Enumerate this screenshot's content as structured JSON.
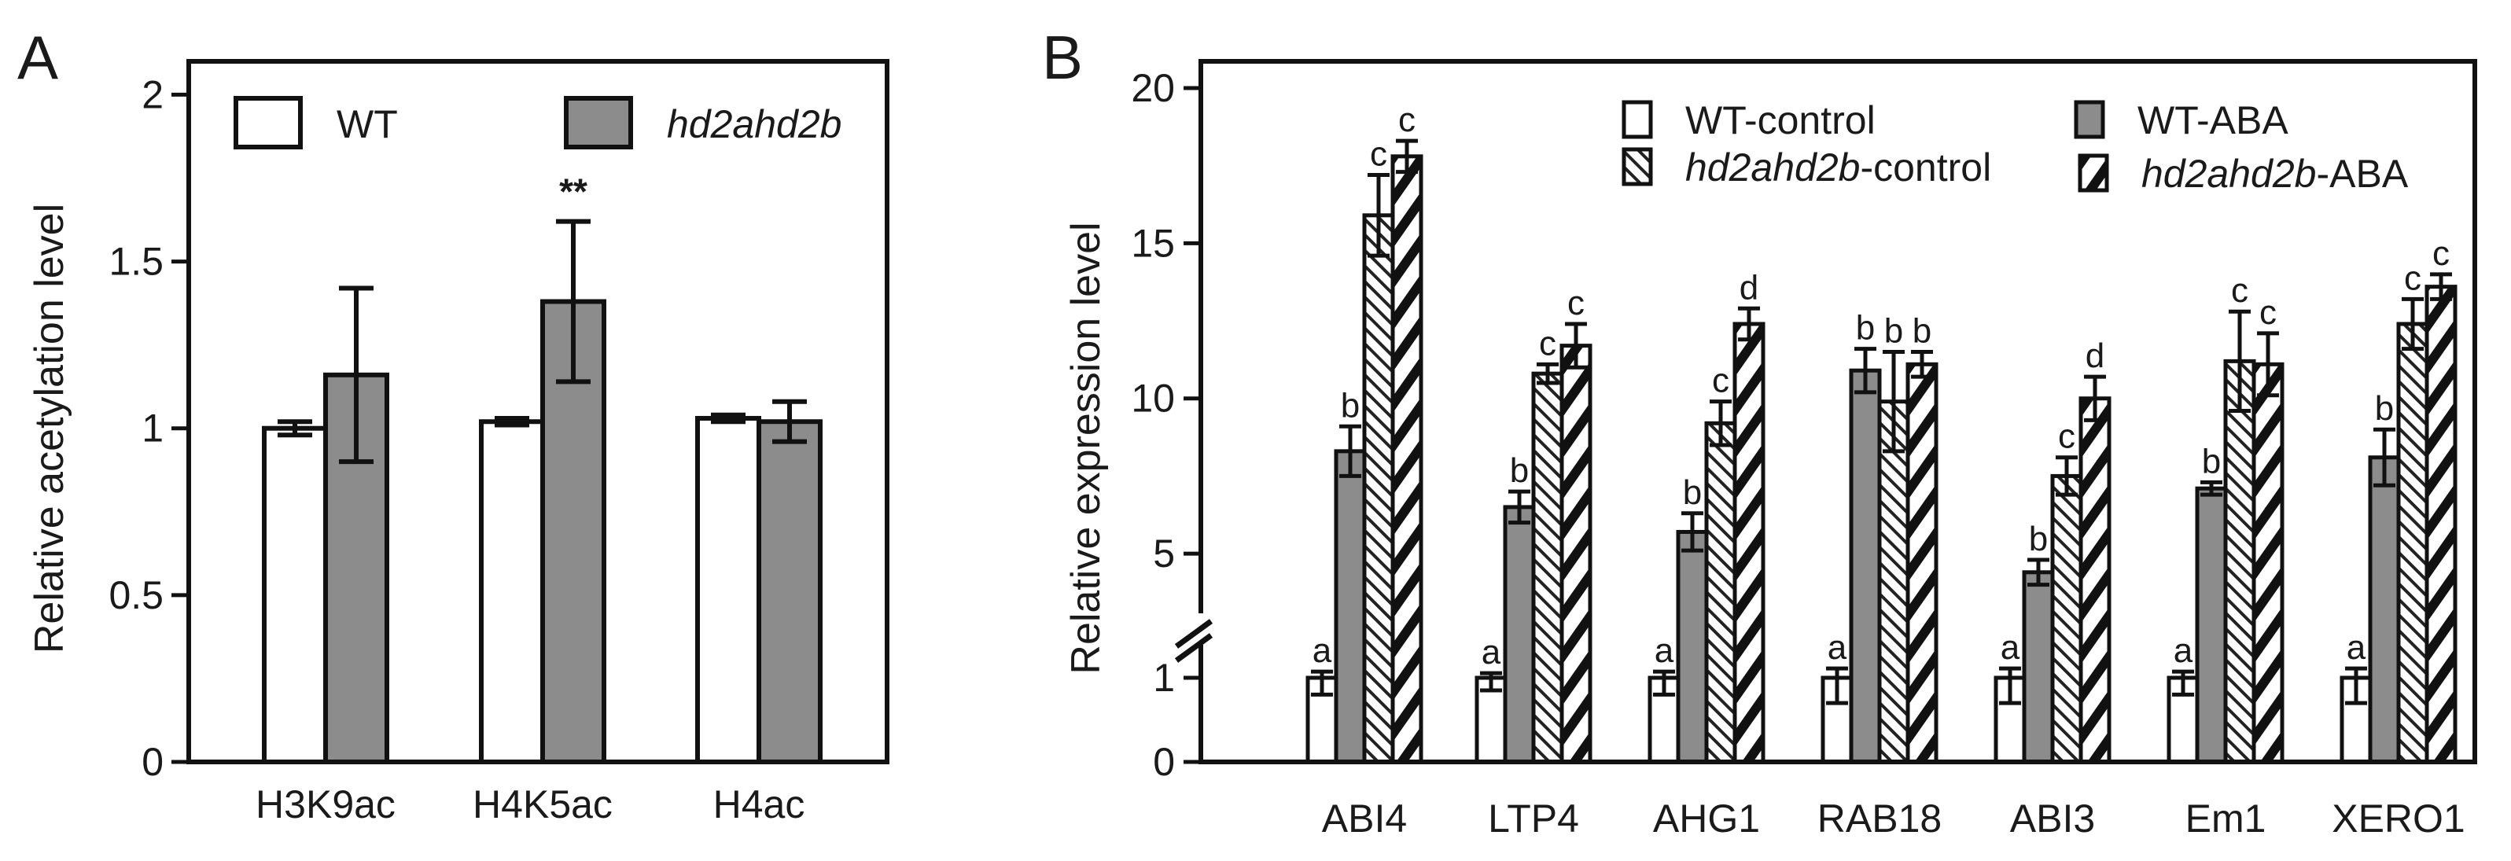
{
  "colors": {
    "white": "#ffffff",
    "gray": "#8c8c8c",
    "black": "#111111"
  },
  "chart_data": [
    {
      "panel": "A",
      "type": "bar",
      "ylabel": "Relative acetylation level",
      "ylim": [
        0,
        2.1
      ],
      "yticks": [
        0,
        0.5,
        1,
        1.5,
        2
      ],
      "ytick_labels": [
        "0",
        "0.5",
        "1",
        "1.5",
        "2"
      ],
      "categories": [
        "H3K9ac",
        "H4K5ac",
        "H4ac"
      ],
      "legend": {
        "placement": "top",
        "entries": [
          {
            "label": "WT",
            "italic": false,
            "fill": "white"
          },
          {
            "label": "hd2ahd2b",
            "italic": true,
            "fill": "gray"
          }
        ]
      },
      "series": [
        {
          "name": "WT",
          "fill": "white",
          "values": [
            1.0,
            1.02,
            1.03
          ],
          "errors": [
            0.02,
            0.01,
            0.01
          ]
        },
        {
          "name": "hd2ahd2b",
          "fill": "gray",
          "values": [
            1.16,
            1.38,
            1.02
          ],
          "errors": [
            0.26,
            0.24,
            0.06
          ]
        }
      ],
      "annotations": [
        {
          "category": "H4K5ac",
          "series": "hd2ahd2b",
          "text": "**"
        }
      ]
    },
    {
      "panel": "B",
      "type": "bar",
      "ylabel": "Relative expression level",
      "ylim": [
        0,
        20
      ],
      "axis_break": true,
      "yticks": [
        0,
        1,
        5,
        10,
        15,
        20
      ],
      "ytick_labels": [
        "0",
        "1",
        "5",
        "10",
        "15",
        "20"
      ],
      "categories": [
        "ABI4",
        "LTP4",
        "AHG1",
        "RAB18",
        "ABI3",
        "Em1",
        "XERO1"
      ],
      "legend": {
        "placement": "top-right",
        "entries": [
          {
            "label": "WT-control",
            "prefix": "",
            "suffix": "",
            "fill": "white"
          },
          {
            "label": "WT-ABA",
            "prefix": "",
            "suffix": "",
            "fill": "gray"
          },
          {
            "label": "hd2ahd2b-control",
            "prefix": "hd2ahd2b",
            "suffix": "-control",
            "fill": "dots"
          },
          {
            "label": "hd2ahd2b-ABA",
            "prefix": "hd2ahd2b",
            "suffix": "-ABA",
            "fill": "stripes"
          }
        ]
      },
      "series": [
        {
          "name": "WT-control",
          "fill": "white",
          "values": [
            1.0,
            1.0,
            1.0,
            1.0,
            1.0,
            1.0,
            1.0
          ],
          "errors": [
            0.2,
            0.15,
            0.2,
            0.3,
            0.3,
            0.2,
            0.3
          ],
          "letters": [
            "a",
            "a",
            "a",
            "a",
            "a",
            "a",
            "a"
          ]
        },
        {
          "name": "WT-ABA",
          "fill": "gray",
          "values": [
            8.3,
            6.5,
            5.7,
            10.9,
            4.4,
            7.1,
            8.1
          ],
          "errors": [
            0.8,
            0.5,
            0.6,
            0.7,
            0.4,
            0.2,
            0.9
          ],
          "letters": [
            "b",
            "b",
            "b",
            "b",
            "b",
            "b",
            "b"
          ]
        },
        {
          "name": "hd2ahd2b-control",
          "fill": "dots",
          "values": [
            15.9,
            10.8,
            9.2,
            9.9,
            7.5,
            11.2,
            12.4
          ],
          "errors": [
            1.3,
            0.3,
            0.7,
            1.6,
            0.6,
            1.6,
            0.8
          ],
          "letters": [
            "c",
            "c",
            "c",
            "b",
            "c",
            "c",
            "c"
          ]
        },
        {
          "name": "hd2ahd2b-ABA",
          "fill": "stripes",
          "values": [
            17.8,
            11.7,
            12.4,
            11.1,
            10.0,
            11.1,
            13.6
          ],
          "errors": [
            0.5,
            0.7,
            0.5,
            0.4,
            0.7,
            1.0,
            0.4
          ],
          "letters": [
            "c",
            "c",
            "d",
            "b",
            "d",
            "c",
            "c"
          ]
        }
      ]
    }
  ]
}
